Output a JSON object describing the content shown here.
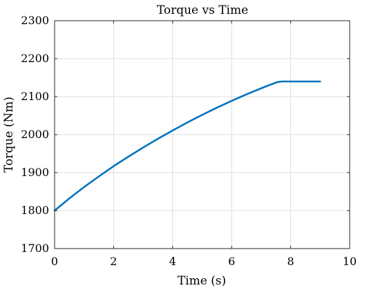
{
  "chart_data": {
    "type": "line",
    "title": "Torque vs Time",
    "xlabel": "Time (s)",
    "ylabel": "Torque (Nm)",
    "xlim": [
      0,
      10
    ],
    "ylim": [
      1700,
      2300
    ],
    "xticks": [
      0,
      2,
      4,
      6,
      8,
      10
    ],
    "yticks": [
      1700,
      1800,
      1900,
      2000,
      2100,
      2200,
      2300
    ],
    "grid": true,
    "series": [
      {
        "color": "#0072BD",
        "x": [
          0,
          0.5,
          1,
          1.5,
          2,
          2.5,
          3,
          3.5,
          4,
          4.5,
          5,
          5.5,
          6,
          6.5,
          7,
          7.5,
          7.6,
          7.7,
          8,
          8.5,
          9
        ],
        "y": [
          1800,
          1832,
          1862,
          1890,
          1917,
          1942,
          1966,
          1989,
          2011,
          2032,
          2052,
          2071,
          2089,
          2106,
          2122,
          2137,
          2139,
          2140,
          2140,
          2140,
          2140
        ]
      }
    ]
  }
}
